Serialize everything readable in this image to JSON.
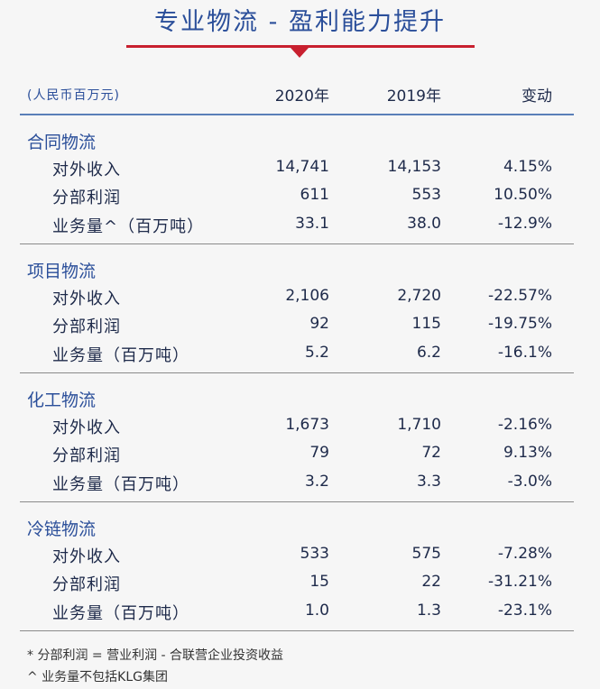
{
  "header": {
    "title": "专业物流 - 盈利能力提升"
  },
  "table": {
    "unit": "(人民币百万元)",
    "columns": [
      "2020年",
      "2019年",
      "变动"
    ],
    "sections": [
      {
        "title": "合同物流",
        "rows": [
          [
            "对外收入",
            "14,741",
            "14,153",
            "4.15%"
          ],
          [
            "分部利润",
            "611",
            "553",
            "10.50%"
          ],
          [
            "业务量^（百万吨）",
            "33.1",
            "38.0",
            "-12.9%"
          ]
        ]
      },
      {
        "title": "项目物流",
        "rows": [
          [
            "对外收入",
            "2,106",
            "2,720",
            "-22.57%"
          ],
          [
            "分部利润",
            "92",
            "115",
            "-19.75%"
          ],
          [
            "业务量（百万吨）",
            "5.2",
            "6.2",
            "-16.1%"
          ]
        ]
      },
      {
        "title": "化工物流",
        "rows": [
          [
            "对外收入",
            "1,673",
            "1,710",
            "-2.16%"
          ],
          [
            "分部利润",
            "79",
            "72",
            "9.13%"
          ],
          [
            "业务量（百万吨）",
            "3.2",
            "3.3",
            "-3.0%"
          ]
        ]
      },
      {
        "title": "冷链物流",
        "rows": [
          [
            "对外收入",
            "533",
            "575",
            "-7.28%"
          ],
          [
            "分部利润",
            "15",
            "22",
            "-31.21%"
          ],
          [
            "业务量（百万吨）",
            "1.0",
            "1.3",
            "-23.1%"
          ]
        ]
      }
    ]
  },
  "footnotes": [
    "* 分部利润 = 营业利润 - 合联营企业投资收益",
    "^ 业务量不包括KLG集团"
  ]
}
